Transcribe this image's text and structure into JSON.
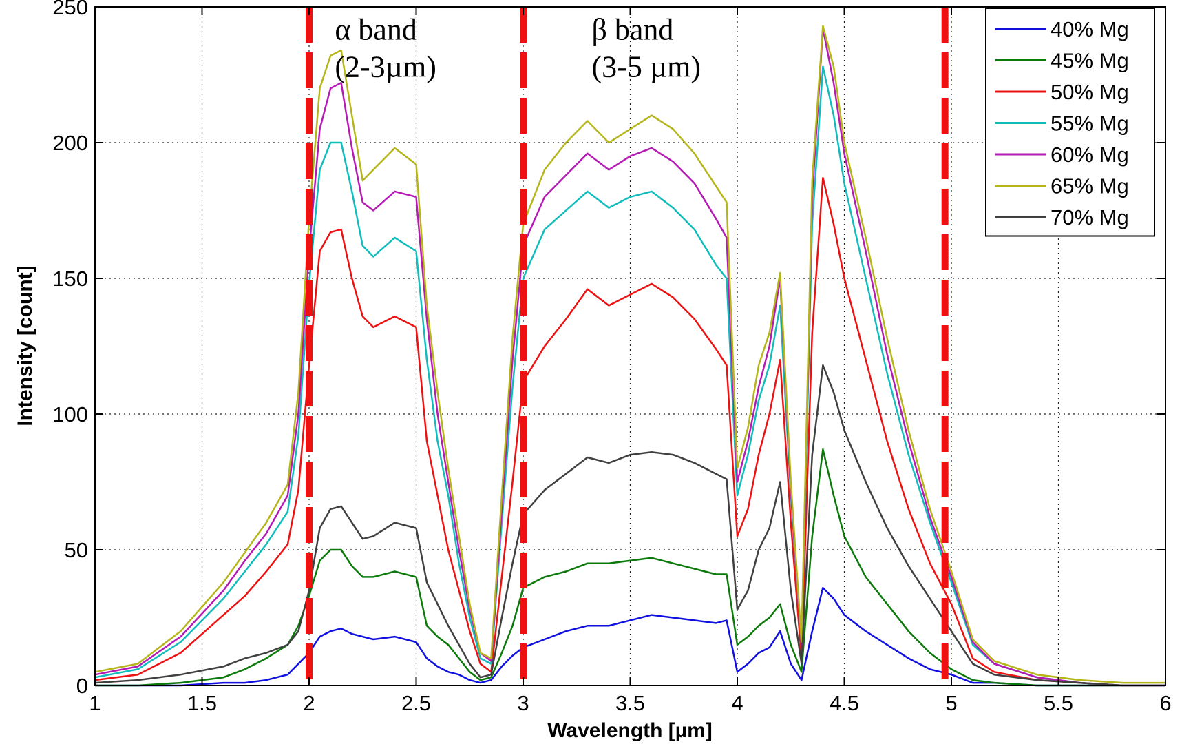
{
  "chart_data": {
    "type": "line",
    "title": "",
    "xlabel": "Wavelength [µm]",
    "ylabel": "Intensity [count]",
    "xlim": [
      1,
      6
    ],
    "ylim": [
      0,
      250
    ],
    "grid": true,
    "legend_position": "top-right",
    "x_ticks": [
      "1",
      "1.5",
      "2",
      "2.5",
      "3",
      "3.5",
      "4",
      "4.5",
      "5",
      "5.5",
      "6"
    ],
    "y_ticks": [
      "0",
      "50",
      "100",
      "150",
      "200",
      "250"
    ],
    "band_markers": [
      2,
      3,
      4.97
    ],
    "annotations": [
      {
        "line1": "α band",
        "line2": "(2-3µm)",
        "x": 2.12,
        "y": 240
      },
      {
        "line1": "β band",
        "line2": "(3-5 µm)",
        "x": 3.32,
        "y": 240
      }
    ],
    "x": [
      1.0,
      1.2,
      1.4,
      1.6,
      1.7,
      1.8,
      1.9,
      1.95,
      2.0,
      2.05,
      2.1,
      2.15,
      2.2,
      2.25,
      2.3,
      2.4,
      2.5,
      2.55,
      2.6,
      2.65,
      2.7,
      2.75,
      2.8,
      2.85,
      2.9,
      2.95,
      3.0,
      3.1,
      3.2,
      3.3,
      3.4,
      3.5,
      3.6,
      3.7,
      3.8,
      3.9,
      3.95,
      4.0,
      4.05,
      4.1,
      4.15,
      4.2,
      4.25,
      4.3,
      4.35,
      4.4,
      4.45,
      4.5,
      4.6,
      4.7,
      4.8,
      4.9,
      5.0,
      5.1,
      5.2,
      5.4,
      5.6,
      5.8,
      6.0
    ],
    "series": [
      {
        "name": "40% Mg",
        "color": "#1010e0",
        "values": [
          0,
          0,
          0,
          1,
          1,
          2,
          4,
          8,
          12,
          18,
          20,
          21,
          19,
          18,
          17,
          18,
          16,
          10,
          7,
          5,
          4,
          2,
          1,
          2,
          7,
          11,
          14,
          17,
          20,
          22,
          22,
          24,
          26,
          25,
          24,
          23,
          24,
          5,
          8,
          12,
          14,
          20,
          8,
          2,
          20,
          36,
          32,
          26,
          20,
          15,
          10,
          6,
          4,
          1,
          1,
          0,
          0,
          0,
          0
        ]
      },
      {
        "name": "45% Mg",
        "color": "#0b7a0b",
        "values": [
          0,
          0,
          1,
          3,
          6,
          10,
          15,
          22,
          33,
          46,
          50,
          50,
          44,
          40,
          40,
          42,
          40,
          22,
          18,
          15,
          10,
          5,
          2,
          3,
          12,
          22,
          36,
          40,
          42,
          45,
          45,
          46,
          47,
          45,
          43,
          41,
          41,
          15,
          18,
          22,
          25,
          30,
          15,
          5,
          55,
          87,
          70,
          55,
          40,
          30,
          20,
          12,
          6,
          2,
          1,
          0,
          0,
          0,
          0
        ]
      },
      {
        "name": "50% Mg",
        "color": "#ee1111",
        "values": [
          2,
          4,
          12,
          26,
          33,
          42,
          52,
          72,
          118,
          160,
          167,
          168,
          150,
          136,
          132,
          136,
          132,
          90,
          70,
          50,
          35,
          20,
          8,
          5,
          40,
          75,
          112,
          125,
          135,
          146,
          140,
          144,
          148,
          143,
          135,
          124,
          118,
          55,
          65,
          85,
          100,
          120,
          60,
          10,
          130,
          187,
          170,
          150,
          120,
          90,
          65,
          45,
          30,
          10,
          5,
          2,
          1,
          0,
          0
        ]
      },
      {
        "name": "55% Mg",
        "color": "#11bcbc",
        "values": [
          3,
          6,
          16,
          32,
          42,
          52,
          64,
          92,
          148,
          190,
          200,
          200,
          182,
          162,
          158,
          165,
          160,
          120,
          90,
          70,
          45,
          25,
          10,
          8,
          60,
          110,
          150,
          168,
          175,
          182,
          176,
          180,
          182,
          176,
          168,
          155,
          150,
          70,
          85,
          105,
          118,
          140,
          70,
          15,
          170,
          228,
          210,
          185,
          150,
          115,
          85,
          60,
          38,
          15,
          8,
          3,
          1,
          0,
          0
        ]
      },
      {
        "name": "60% Mg",
        "color": "#b51ab5",
        "values": [
          4,
          7,
          18,
          35,
          46,
          56,
          70,
          100,
          160,
          205,
          220,
          222,
          198,
          178,
          175,
          182,
          180,
          135,
          100,
          75,
          50,
          28,
          12,
          9,
          65,
          120,
          162,
          180,
          188,
          196,
          190,
          195,
          198,
          193,
          185,
          172,
          165,
          75,
          90,
          110,
          125,
          150,
          72,
          15,
          180,
          242,
          222,
          196,
          160,
          122,
          90,
          62,
          40,
          16,
          8,
          3,
          1,
          0,
          0
        ]
      },
      {
        "name": "65% Mg",
        "color": "#b5b51a",
        "values": [
          5,
          8,
          20,
          38,
          49,
          60,
          74,
          108,
          172,
          220,
          232,
          234,
          210,
          186,
          190,
          198,
          192,
          140,
          108,
          80,
          55,
          30,
          12,
          10,
          70,
          128,
          170,
          190,
          200,
          208,
          200,
          205,
          210,
          205,
          196,
          184,
          178,
          80,
          95,
          118,
          130,
          152,
          75,
          16,
          186,
          243,
          228,
          200,
          165,
          128,
          94,
          65,
          42,
          17,
          9,
          4,
          2,
          1,
          1
        ]
      },
      {
        "name": "70% Mg",
        "color": "#404040",
        "values": [
          1,
          2,
          4,
          7,
          10,
          12,
          15,
          20,
          35,
          58,
          65,
          66,
          60,
          54,
          55,
          60,
          58,
          38,
          30,
          22,
          15,
          8,
          3,
          4,
          25,
          45,
          63,
          72,
          78,
          84,
          82,
          85,
          86,
          85,
          82,
          78,
          76,
          28,
          35,
          50,
          58,
          75,
          35,
          8,
          85,
          118,
          108,
          94,
          75,
          58,
          44,
          32,
          20,
          8,
          4,
          2,
          1,
          0,
          0
        ]
      }
    ]
  }
}
